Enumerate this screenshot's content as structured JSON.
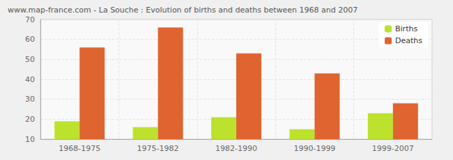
{
  "chart_data": {
    "type": "bar",
    "title": "www.map-france.com - La Souche : Evolution of births and deaths between 1968 and 2007",
    "categories": [
      "1968-1975",
      "1975-1982",
      "1982-1990",
      "1990-1999",
      "1999-2007"
    ],
    "series": [
      {
        "name": "Births",
        "color": "#bde22e",
        "values": [
          19,
          16,
          21,
          15,
          23
        ]
      },
      {
        "name": "Deaths",
        "color": "#e0642f",
        "values": [
          56,
          66,
          53,
          43,
          28
        ]
      }
    ],
    "ylim": [
      10,
      70
    ],
    "yticks": [
      10,
      20,
      30,
      40,
      50,
      60,
      70
    ],
    "grid": true,
    "legend": "upper right"
  }
}
